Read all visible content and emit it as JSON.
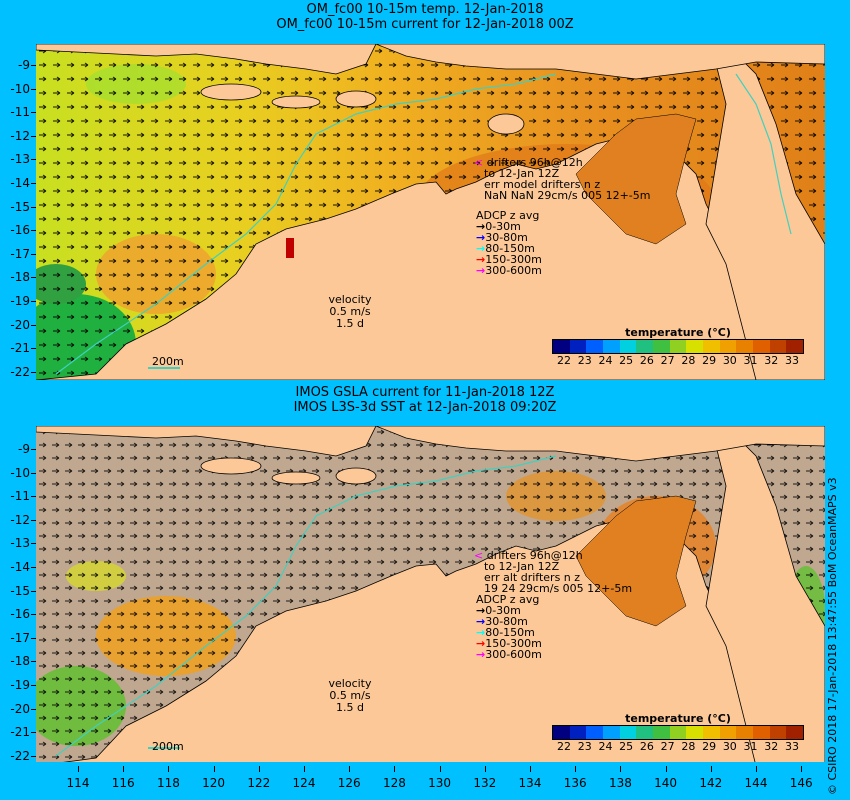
{
  "top_panel": {
    "title_line1": "OM_fc00 10-15m temp. 12-Jan-2018",
    "title_line2": "OM_fc00 10-15m current for 12-Jan-2018 00Z",
    "drifters": {
      "marker": "<",
      "line1": "drifters 96h@12h",
      "line2": "to 12-Jan 12Z",
      "line3": "err model drifters n z",
      "line4": "NaN NaN 29cm/s 005 12+-5m"
    },
    "velocity": {
      "label": "velocity",
      "speed": "0.5 m/s",
      "duration": "1.5 d"
    },
    "scale_label": "200m"
  },
  "bottom_panel": {
    "title_line1": "IMOS GSLA current for 11-Jan-2018 12Z",
    "title_line2": "IMOS L3S-3d SST at 12-Jan-2018 09:20Z",
    "drifters": {
      "marker": "<",
      "line1": "drifters 96h@12h",
      "line2": "to 12-Jan 12Z",
      "line3": "err alt drifters n z",
      "line4": "19 24 29cm/s 005 12+-5m"
    },
    "velocity": {
      "label": "velocity",
      "speed": "0.5 m/s",
      "duration": "1.5 d"
    },
    "scale_label": "200m"
  },
  "adcp": {
    "title": "ADCP z avg",
    "items": [
      {
        "label": "0-30m",
        "color": "#000000"
      },
      {
        "label": "30-80m",
        "color": "#0000ff"
      },
      {
        "label": "80-150m",
        "color": "#00ffff"
      },
      {
        "label": "150-300m",
        "color": "#ff0000"
      },
      {
        "label": "300-600m",
        "color": "#ff00ff"
      }
    ]
  },
  "colorbar": {
    "title": "temperature (°C)",
    "ticks": [
      "22",
      "23",
      "24",
      "25",
      "26",
      "27",
      "28",
      "29",
      "30",
      "31",
      "32",
      "33"
    ],
    "colors": [
      "#000080",
      "#0020c0",
      "#0060ff",
      "#00a0ff",
      "#00d0e0",
      "#20c080",
      "#40c040",
      "#90d020",
      "#d8e000",
      "#f0c000",
      "#f0a000",
      "#e88000",
      "#e06000",
      "#c04000",
      "#a02000"
    ]
  },
  "y_axis_labels": [
    "-9",
    "-10",
    "-11",
    "-12",
    "-13",
    "-14",
    "-15",
    "-16",
    "-17",
    "-18",
    "-19",
    "-20",
    "-21",
    "-22"
  ],
  "x_axis_labels": [
    "114",
    "116",
    "118",
    "120",
    "122",
    "124",
    "126",
    "128",
    "130",
    "132",
    "134",
    "136",
    "138",
    "140",
    "142",
    "144",
    "146"
  ],
  "credit": "© CSIRO 2018  17-Jan-2018 13:47:55 BoM OceanMAPS v3",
  "colors": {
    "frame": "#00c0ff",
    "land": "#fcc898",
    "no_data": "#c0a890",
    "warm_sea": "#f0a020",
    "hot_sea": "#e07818",
    "cool_sea": "#d8e020",
    "shelf_contour": "#40d0c0"
  }
}
